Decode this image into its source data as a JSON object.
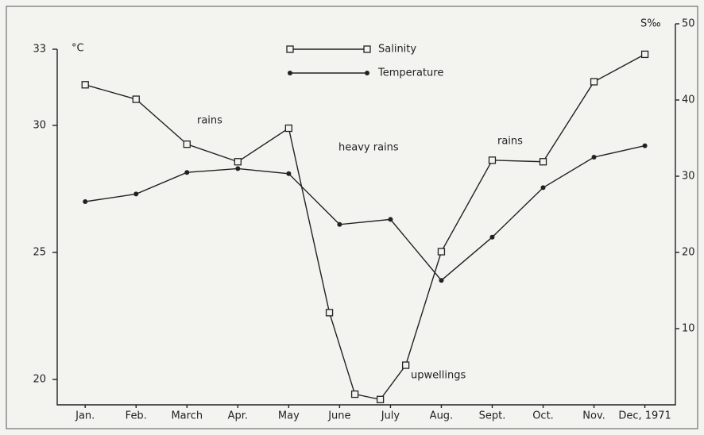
{
  "chart_data": {
    "type": "line",
    "y_label": "°C",
    "y2_label": "S‰",
    "xlim": [
      0.45,
      12.6
    ],
    "xticks": [
      {
        "value": 1,
        "label": "Jan."
      },
      {
        "value": 2,
        "label": "Feb."
      },
      {
        "value": 3,
        "label": "March"
      },
      {
        "value": 4,
        "label": "Apr."
      },
      {
        "value": 5,
        "label": "May"
      },
      {
        "value": 6,
        "label": "June"
      },
      {
        "value": 7,
        "label": "July"
      },
      {
        "value": 8,
        "label": "Aug."
      },
      {
        "value": 9,
        "label": "Sept."
      },
      {
        "value": 10,
        "label": "Oct."
      },
      {
        "value": 11,
        "label": "Nov."
      },
      {
        "value": 12,
        "label": "Dec, 1971"
      }
    ],
    "ylim": [
      19,
      34
    ],
    "yticks": [
      20,
      25,
      30,
      33
    ],
    "y2lim": [
      0,
      50
    ],
    "y2ticks": [
      10,
      20,
      30,
      40,
      50
    ],
    "series": [
      {
        "name": "Salinity",
        "color": "#222222",
        "marker": "square",
        "axis": "y2",
        "x": [
          1,
          2,
          3,
          4,
          5,
          5.8,
          6.3,
          6.8,
          7.3,
          8,
          9,
          10,
          11,
          12
        ],
        "values": [
          42.0,
          40.1,
          34.2,
          31.9,
          36.3,
          12.1,
          1.4,
          0.7,
          5.2,
          20.1,
          32.1,
          31.9,
          42.4,
          46.0
        ]
      },
      {
        "name": "Temperature",
        "color": "#222222",
        "marker": "dot",
        "axis": "y",
        "x": [
          1,
          2,
          3,
          4,
          5,
          6,
          7,
          8,
          9,
          10,
          11,
          12
        ],
        "values": [
          27.0,
          27.3,
          28.15,
          28.3,
          28.1,
          26.1,
          26.3,
          23.9,
          25.6,
          27.55,
          28.75,
          29.2
        ]
      }
    ],
    "annotations": [
      "rains",
      "heavy rains",
      "rains",
      "upwellings"
    ]
  }
}
